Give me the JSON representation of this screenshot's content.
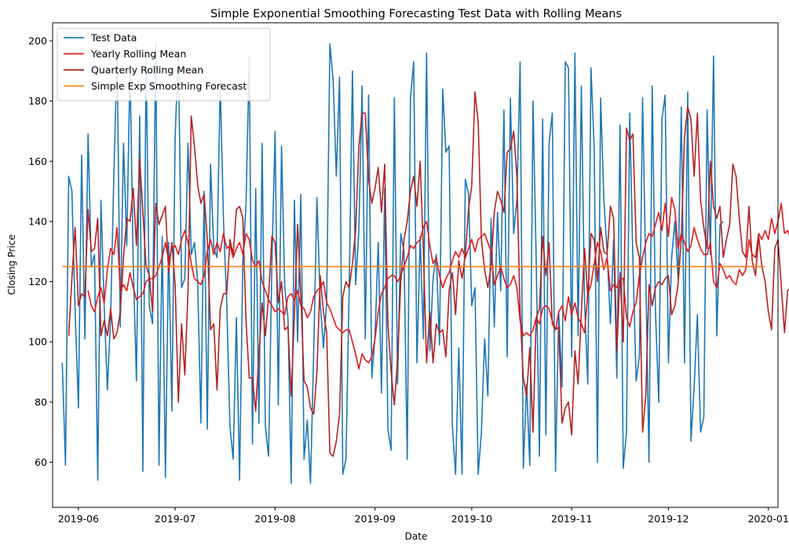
{
  "chart_data": {
    "type": "line",
    "title": "Simple Exponential Smoothing Forecasting Test Data with Rolling Means",
    "xlabel": "Date",
    "ylabel": "Closing Price",
    "x_range": [
      "2019-05-24",
      "2020-01-04"
    ],
    "ylim": [
      45,
      206
    ],
    "x_ticks": [
      "2019-06",
      "2019-07",
      "2019-08",
      "2019-09",
      "2019-10",
      "2019-11",
      "2019-12",
      "2020-01"
    ],
    "y_ticks": [
      60,
      80,
      100,
      120,
      140,
      160,
      180,
      200
    ],
    "grid": false,
    "legend_position": "top-left",
    "series": [
      {
        "name": "Test Data",
        "color": "#1f77b4",
        "start_date": "2019-05-27",
        "values": [
          93,
          59,
          155,
          150,
          110,
          78,
          162,
          101,
          169,
          125,
          129,
          54,
          147,
          112,
          84,
          108,
          155,
          196,
          105,
          166,
          132,
          192,
          126,
          87,
          175,
          57,
          195,
          112,
          106,
          199,
          59,
          135,
          55,
          133,
          77,
          168,
          197,
          118,
          121,
          166,
          129,
          133,
          120,
          73,
          150,
          71,
          159,
          131,
          128,
          186,
          140,
          113,
          72,
          61,
          108,
          54,
          127,
          146,
          195,
          66,
          151,
          73,
          166,
          72,
          62,
          126,
          170,
          79,
          165,
          118,
          108,
          53,
          147,
          100,
          149,
          61,
          74,
          53,
          97,
          148,
          113,
          98,
          113,
          199,
          187,
          155,
          188,
          56,
          61,
          118,
          190,
          119,
          137,
          185,
          101,
          182,
          88,
          102,
          133,
          83,
          151,
          71,
          64,
          181,
          86,
          136,
          130,
          61,
          181,
          193,
          93,
          135,
          101,
          196,
          97,
          121,
          129,
          99,
          184,
          163,
          165,
          72,
          56,
          98,
          56,
          154,
          149,
          112,
          118,
          56,
          70,
          101,
          82,
          141,
          105,
          143,
          117,
          177,
          95,
          181,
          136,
          147,
          193,
          58,
          86,
          59,
          180,
          127,
          62,
          174,
          69,
          166,
          176,
          57,
          110,
          85,
          193,
          191,
          95,
          196,
          102,
          185,
          113,
          86,
          191,
          164,
          60,
          181,
          147,
          130,
          106,
          134,
          88,
          172,
          58,
          70,
          176,
          127,
          87,
          95,
          181,
          122,
          60,
          185,
          110,
          80,
          174,
          182,
          93,
          128,
          140,
          121,
          178,
          93,
          183,
          67,
          85,
          109,
          70,
          75,
          177,
          129,
          195,
          102,
          139,
          140
        ]
      },
      {
        "name": "Yearly Rolling Mean",
        "color": "#e41a1c",
        "start_date": "2019-06-04",
        "values": [
          117,
          112,
          110,
          115,
          118,
          113,
          124,
          131,
          129,
          138,
          117,
          119,
          117,
          123,
          118,
          114,
          115,
          116,
          120,
          121,
          121,
          122,
          125,
          128,
          133,
          127,
          131,
          132,
          129,
          134,
          137,
          133,
          126,
          121,
          120,
          119,
          122,
          130,
          134,
          129,
          133,
          130,
          136,
          131,
          132,
          128,
          131,
          133,
          129,
          136,
          134,
          127,
          125,
          127,
          120,
          117,
          114,
          112,
          110,
          111,
          110,
          109,
          115,
          116,
          114,
          117,
          112,
          111,
          108,
          110,
          115,
          117,
          118,
          120,
          113,
          111,
          108,
          105,
          104,
          103,
          104,
          104,
          100,
          96,
          91,
          96,
          94,
          93,
          95,
          101,
          110,
          116,
          118,
          121,
          122,
          122,
          120,
          122,
          125,
          128,
          132,
          131,
          133,
          134,
          138,
          140,
          132,
          126,
          128,
          122,
          118,
          121,
          123,
          127,
          130,
          128,
          131,
          128,
          131,
          134,
          130,
          134,
          135,
          136,
          133,
          130,
          119,
          122,
          125,
          121,
          118,
          119,
          122,
          118,
          107,
          102,
          103,
          102,
          104,
          108,
          106,
          111,
          112,
          111,
          107,
          104,
          110,
          112,
          107,
          115,
          109,
          113,
          108,
          106,
          103,
          116,
          119,
          126,
          133,
          130,
          124,
          128,
          117,
          119,
          118,
          121,
          121,
          108,
          105,
          110,
          113,
          122,
          128,
          133,
          136,
          135,
          139,
          143,
          137,
          146,
          135,
          148,
          144,
          131,
          136,
          133,
          130,
          132,
          138,
          134,
          131,
          129,
          129,
          133,
          120,
          118,
          126,
          124,
          121,
          122,
          120,
          119,
          124,
          122,
          124,
          134,
          129,
          128,
          136,
          134,
          137,
          134,
          141,
          136,
          140,
          146,
          136,
          137,
          134,
          131,
          126,
          123,
          119,
          116,
          118,
          117,
          119,
          120,
          121,
          118,
          118,
          118
        ]
      },
      {
        "name": "Quarterly Rolling Mean",
        "color": "#b22222",
        "start_date": "2019-05-29",
        "values": [
          102,
          121,
          138,
          112,
          116,
          115,
          144,
          130,
          131,
          141,
          102,
          107,
          102,
          111,
          101,
          103,
          110,
          128,
          141,
          140,
          151,
          132,
          161,
          143,
          125,
          122,
          110,
          146,
          139,
          142,
          145,
          123,
          133,
          119,
          80,
          106,
          89,
          117,
          175,
          165,
          152,
          146,
          149,
          134,
          104,
          106,
          84,
          111,
          116,
          116,
          134,
          129,
          144,
          145,
          141,
          107,
          88,
          88,
          77,
          96,
          113,
          102,
          115,
          135,
          133,
          113,
          120,
          104,
          105,
          82,
          109,
          139,
          115,
          87,
          85,
          78,
          76,
          90,
          122,
          110,
          103,
          63,
          62,
          67,
          76,
          115,
          120,
          118,
          126,
          137,
          165,
          176,
          176,
          154,
          146,
          151,
          158,
          143,
          159,
          106,
          90,
          79,
          94,
          120,
          134,
          140,
          150,
          155,
          145,
          160,
          130,
          93,
          110,
          93,
          106,
          103,
          104,
          95,
          117,
          123,
          109,
          127,
          121,
          129,
          144,
          152,
          183,
          173,
          134,
          124,
          118,
          125,
          143,
          150,
          147,
          143,
          163,
          164,
          170,
          155,
          110,
          88,
          82,
          98,
          70,
          108,
          111,
          135,
          122,
          133,
          106,
          104,
          105,
          73,
          78,
          80,
          69,
          97,
          86,
          110,
          131,
          115,
          136,
          134,
          120,
          138,
          130,
          129,
          145,
          141,
          97,
          123,
          100,
          171,
          167,
          169,
          133,
          128,
          70,
          82,
          119,
          112,
          118,
          120,
          119,
          121,
          122,
          109,
          112,
          119,
          134,
          168,
          178,
          174,
          155,
          176,
          147,
          138,
          131,
          160,
          145,
          141,
          145,
          128,
          134,
          139,
          159,
          155,
          141,
          130,
          128,
          145,
          127,
          122,
          135,
          125,
          120,
          110,
          104,
          131,
          134,
          119,
          103,
          117,
          118,
          150,
          143,
          126,
          112,
          136,
          130,
          125,
          125,
          130,
          120,
          115,
          120,
          110,
          130,
          150,
          145,
          147,
          126,
          160,
          142,
          140,
          135,
          128,
          145,
          132,
          140,
          135,
          140,
          130,
          135,
          151,
          140,
          120,
          145,
          130,
          126,
          96,
          99,
          99,
          104,
          98,
          76,
          101,
          116,
          124,
          130,
          137,
          171,
          146,
          145,
          127
        ]
      },
      {
        "name": "Simple Exp Smoothing Forecast",
        "color": "#ff7f0e",
        "start_date": "2019-05-27",
        "end_date": "2019-12-31",
        "value": 125
      }
    ]
  }
}
